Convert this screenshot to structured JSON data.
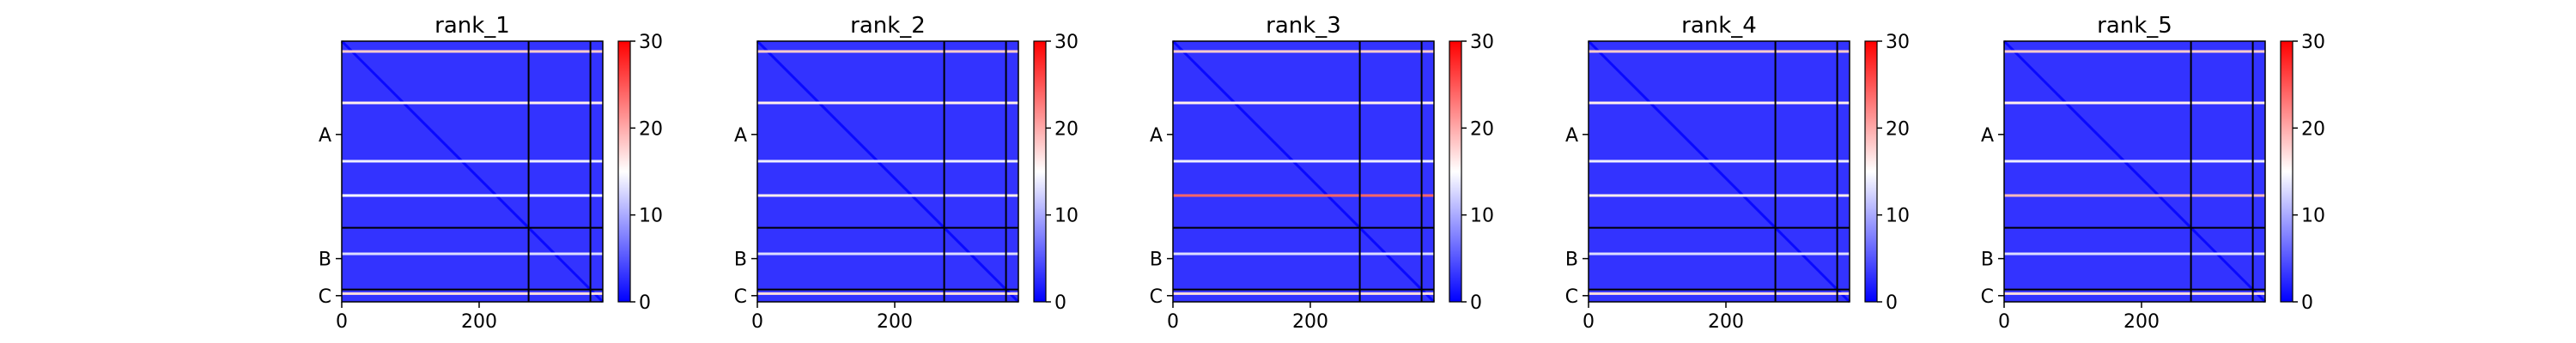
{
  "chart_data": [
    {
      "type": "heatmap",
      "title": "rank_1",
      "xlabel": "",
      "ylabel": "",
      "matrix_size": 380,
      "chain_labels": [
        "A",
        "B",
        "C"
      ],
      "chain_boundaries": [
        272,
        362
      ],
      "xticks": [
        0,
        200
      ],
      "xlim": [
        0,
        380
      ],
      "colorbar": {
        "min": 0,
        "max": 30,
        "ticks": [
          0,
          10,
          20,
          30
        ],
        "colormap": "bwr"
      },
      "bright_rows": [
        {
          "row": 15,
          "value": 18
        },
        {
          "row": 90,
          "value": 16
        },
        {
          "row": 175,
          "value": 14
        },
        {
          "row": 225,
          "value": 15
        },
        {
          "row": 310,
          "value": 13
        },
        {
          "row": 368,
          "value": 17
        }
      ]
    },
    {
      "type": "heatmap",
      "title": "rank_2",
      "xlabel": "",
      "ylabel": "",
      "matrix_size": 380,
      "chain_labels": [
        "A",
        "B",
        "C"
      ],
      "chain_boundaries": [
        272,
        362
      ],
      "xticks": [
        0,
        200
      ],
      "xlim": [
        0,
        380
      ],
      "colorbar": {
        "min": 0,
        "max": 30,
        "ticks": [
          0,
          10,
          20,
          30
        ],
        "colormap": "bwr"
      },
      "bright_rows": [
        {
          "row": 15,
          "value": 18
        },
        {
          "row": 90,
          "value": 16
        },
        {
          "row": 175,
          "value": 14
        },
        {
          "row": 225,
          "value": 16
        },
        {
          "row": 310,
          "value": 13
        },
        {
          "row": 368,
          "value": 17
        }
      ]
    },
    {
      "type": "heatmap",
      "title": "rank_3",
      "xlabel": "",
      "ylabel": "",
      "matrix_size": 380,
      "chain_labels": [
        "A",
        "B",
        "C"
      ],
      "chain_boundaries": [
        272,
        362
      ],
      "xticks": [
        0,
        200
      ],
      "xlim": [
        0,
        380
      ],
      "colorbar": {
        "min": 0,
        "max": 30,
        "ticks": [
          0,
          10,
          20,
          30
        ],
        "colormap": "bwr"
      },
      "bright_rows": [
        {
          "row": 15,
          "value": 18
        },
        {
          "row": 90,
          "value": 16
        },
        {
          "row": 175,
          "value": 14
        },
        {
          "row": 225,
          "value": 24
        },
        {
          "row": 310,
          "value": 13
        },
        {
          "row": 368,
          "value": 17
        }
      ]
    },
    {
      "type": "heatmap",
      "title": "rank_4",
      "xlabel": "",
      "ylabel": "",
      "matrix_size": 380,
      "chain_labels": [
        "A",
        "B",
        "C"
      ],
      "chain_boundaries": [
        272,
        362
      ],
      "xticks": [
        0,
        200
      ],
      "xlim": [
        0,
        380
      ],
      "colorbar": {
        "min": 0,
        "max": 30,
        "ticks": [
          0,
          10,
          20,
          30
        ],
        "colormap": "bwr"
      },
      "bright_rows": [
        {
          "row": 15,
          "value": 18
        },
        {
          "row": 90,
          "value": 16
        },
        {
          "row": 175,
          "value": 14
        },
        {
          "row": 225,
          "value": 16
        },
        {
          "row": 310,
          "value": 13
        },
        {
          "row": 368,
          "value": 17
        }
      ]
    },
    {
      "type": "heatmap",
      "title": "rank_5",
      "xlabel": "",
      "ylabel": "",
      "matrix_size": 380,
      "chain_labels": [
        "A",
        "B",
        "C"
      ],
      "chain_boundaries": [
        272,
        362
      ],
      "xticks": [
        0,
        200
      ],
      "xlim": [
        0,
        380
      ],
      "colorbar": {
        "min": 0,
        "max": 30,
        "ticks": [
          0,
          10,
          20,
          30
        ],
        "colormap": "bwr"
      },
      "bright_rows": [
        {
          "row": 15,
          "value": 18
        },
        {
          "row": 90,
          "value": 16
        },
        {
          "row": 175,
          "value": 14
        },
        {
          "row": 225,
          "value": 19
        },
        {
          "row": 310,
          "value": 13
        },
        {
          "row": 368,
          "value": 17
        }
      ]
    }
  ]
}
